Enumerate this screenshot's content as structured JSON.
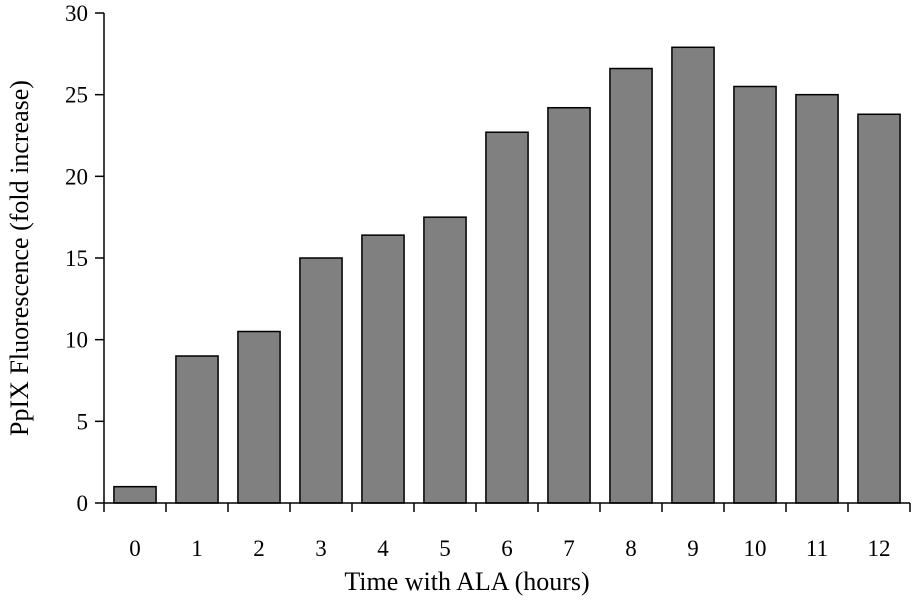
{
  "chart_data": {
    "type": "bar",
    "title": "",
    "xlabel": "Time with ALA (hours)",
    "ylabel": "PpIX Fluorescence (fold increase)",
    "categories": [
      "0",
      "1",
      "2",
      "3",
      "4",
      "5",
      "6",
      "7",
      "8",
      "9",
      "10",
      "11",
      "12"
    ],
    "values": [
      1.0,
      9.0,
      10.5,
      15.0,
      16.4,
      17.5,
      22.7,
      24.2,
      26.6,
      27.9,
      25.5,
      25.0,
      23.8
    ],
    "ylim": [
      0,
      30
    ],
    "yticks": [
      0,
      5,
      10,
      15,
      20,
      25,
      30
    ],
    "grid": false,
    "legend": "none",
    "bar_color": "#808080",
    "edge_color": "#000000"
  }
}
